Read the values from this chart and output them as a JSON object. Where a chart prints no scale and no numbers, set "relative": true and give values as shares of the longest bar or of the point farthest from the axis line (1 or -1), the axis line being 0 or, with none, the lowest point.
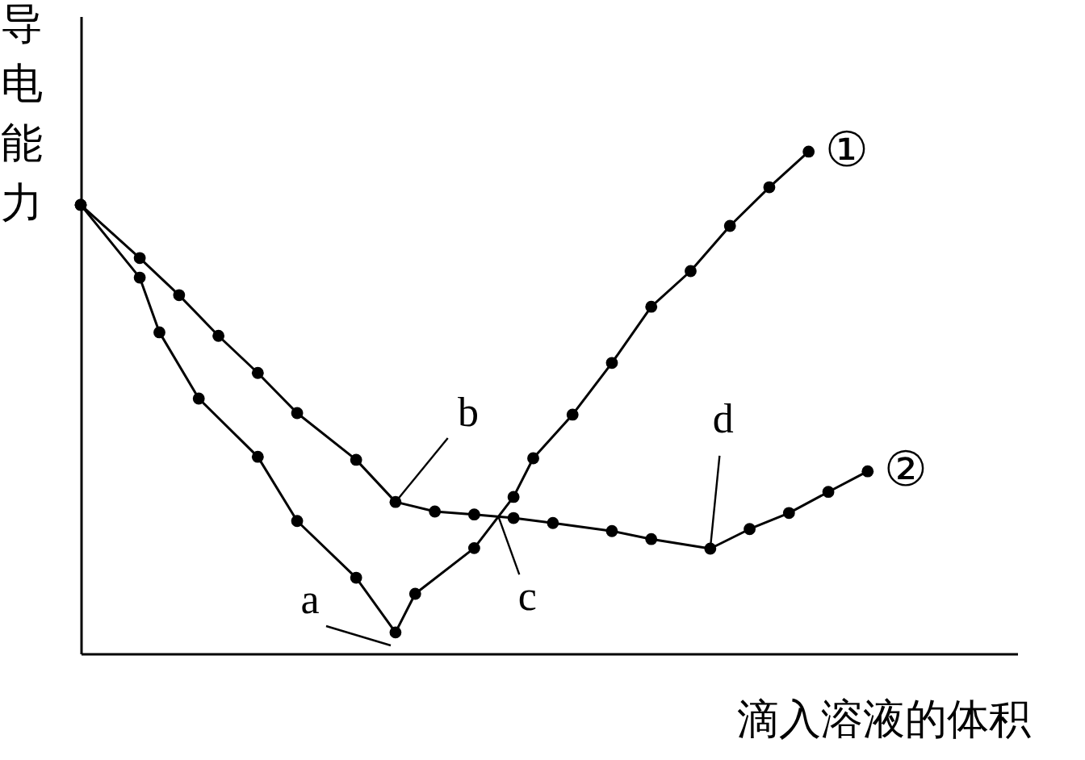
{
  "chart_data": {
    "type": "line",
    "relative": true,
    "xlabel": "滴入溶液的体积",
    "ylabel": "导电能力",
    "tick_labels": false,
    "marker": "circle",
    "line_style": "solid",
    "categories": [
      null,
      null,
      null,
      null,
      null,
      null,
      null,
      null,
      null,
      null,
      null,
      null,
      null,
      null,
      null,
      null,
      null,
      null,
      null,
      null,
      null,
      null,
      null,
      null,
      null,
      null,
      null,
      null,
      null,
      null,
      null,
      null,
      null,
      null,
      null,
      null,
      null,
      null,
      null,
      null,
      null
    ],
    "series": [
      {
        "name": "①",
        "color": "#000000",
        "values": [
          0.894,
          null,
          null,
          0.749,
          0.64,
          null,
          0.508,
          null,
          null,
          0.392,
          null,
          0.264,
          null,
          null,
          0.151,
          null,
          0.042,
          0.119,
          null,
          null,
          0.21,
          null,
          0.312,
          0.389,
          null,
          0.476,
          null,
          0.579,
          null,
          0.691,
          null,
          0.762,
          null,
          0.852,
          null,
          0.929,
          null,
          1.0,
          null,
          null,
          null
        ]
      },
      {
        "name": "②",
        "color": "#000000",
        "values": [
          0.894,
          null,
          null,
          0.788,
          null,
          0.714,
          null,
          0.633,
          null,
          0.559,
          null,
          0.479,
          null,
          null,
          0.386,
          null,
          0.302,
          null,
          0.283,
          null,
          0.277,
          null,
          0.27,
          null,
          0.26,
          null,
          null,
          0.244,
          null,
          0.228,
          null,
          null,
          0.209,
          null,
          0.248,
          null,
          0.28,
          null,
          0.322,
          null,
          0.363
        ]
      }
    ],
    "annotations": [
      "a",
      {
        "text": "b",
        "y": 0.302
      },
      {
        "text": "c",
        "y": 0.273
      },
      {
        "text": "d",
        "y": 0.209
      }
    ]
  }
}
